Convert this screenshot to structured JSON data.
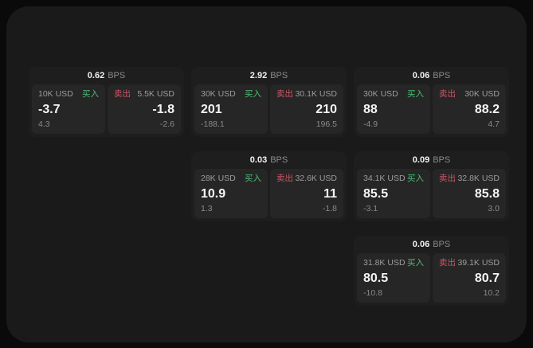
{
  "labels": {
    "bps_unit": "BPS",
    "buy": "买入",
    "sell": "卖出"
  },
  "colors": {
    "buy_green": "#4dbd77",
    "sell_red": "#cb5566",
    "container_bg": "#1a1a1a",
    "card_bg": "#1e1e1e",
    "panel_bg": "#262626"
  },
  "cards": [
    {
      "bps": "0.62",
      "buy": {
        "amount": "10K USD",
        "value": "-3.7",
        "sub": "4.3"
      },
      "sell": {
        "amount": "5.5K USD",
        "value": "-1.8",
        "sub": "-2.6"
      }
    },
    {
      "bps": "2.92",
      "buy": {
        "amount": "30K USD",
        "value": "201",
        "sub": "-188.1"
      },
      "sell": {
        "amount": "30.1K USD",
        "value": "210",
        "sub": "196.5"
      }
    },
    {
      "bps": "0.06",
      "buy": {
        "amount": "30K USD",
        "value": "88",
        "sub": "-4.9"
      },
      "sell": {
        "amount": "30K USD",
        "value": "88.2",
        "sub": "4.7"
      }
    },
    {
      "bps": "0.03",
      "buy": {
        "amount": "28K USD",
        "value": "10.9",
        "sub": "1.3"
      },
      "sell": {
        "amount": "32.6K USD",
        "value": "11",
        "sub": "-1.8"
      }
    },
    {
      "bps": "0.09",
      "buy": {
        "amount": "34.1K USD",
        "value": "85.5",
        "sub": "-3.1"
      },
      "sell": {
        "amount": "32.8K USD",
        "value": "85.8",
        "sub": "3.0"
      }
    },
    {
      "bps": "0.06",
      "buy": {
        "amount": "31.8K USD",
        "value": "80.5",
        "sub": "-10.8"
      },
      "sell": {
        "amount": "39.1K USD",
        "value": "80.7",
        "sub": "10.2"
      }
    }
  ]
}
